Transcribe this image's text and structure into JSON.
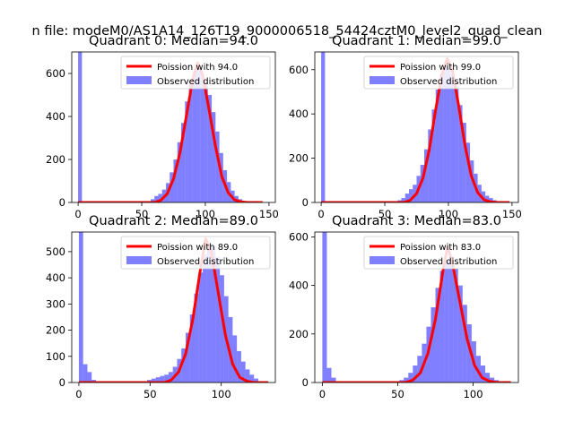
{
  "figure_title": "n file: modeM0/AS1A14_126T19_9000006518_54424cztM0_level2_quad_clean",
  "colors": {
    "hist": "#0000ff",
    "hist_opacity": 0.5,
    "poisson": "#ff0000",
    "axis": "#000000",
    "background": "#ffffff"
  },
  "legend": {
    "poisson_label_prefix": "Poission with ",
    "hist_label": "Observed distribution"
  },
  "chart_data": [
    {
      "type": "bar",
      "title": "Quadrant 0: Median=94.0",
      "median": 94.0,
      "legend_poisson": "Poission with 94.0",
      "legend_position": "upper-right",
      "xlim": [
        -5,
        155
      ],
      "ylim": [
        0,
        700
      ],
      "xticks": [
        0,
        50,
        100,
        150
      ],
      "yticks": [
        0,
        200,
        400,
        600
      ],
      "bin_width": 3,
      "bins": [
        [
          0,
          700
        ],
        [
          3,
          0
        ],
        [
          57,
          15
        ],
        [
          60,
          30
        ],
        [
          63,
          40
        ],
        [
          66,
          60
        ],
        [
          69,
          90
        ],
        [
          72,
          140
        ],
        [
          75,
          200
        ],
        [
          78,
          280
        ],
        [
          81,
          370
        ],
        [
          84,
          470
        ],
        [
          87,
          560
        ],
        [
          90,
          610
        ],
        [
          93,
          620
        ],
        [
          96,
          600
        ],
        [
          99,
          560
        ],
        [
          102,
          500
        ],
        [
          105,
          420
        ],
        [
          108,
          330
        ],
        [
          111,
          230
        ],
        [
          114,
          150
        ],
        [
          117,
          95
        ],
        [
          120,
          55
        ],
        [
          123,
          30
        ],
        [
          126,
          15
        ],
        [
          129,
          5
        ]
      ],
      "curve": [
        [
          0,
          0
        ],
        [
          60,
          0
        ],
        [
          65,
          10
        ],
        [
          70,
          40
        ],
        [
          75,
          110
        ],
        [
          80,
          230
        ],
        [
          85,
          400
        ],
        [
          90,
          570
        ],
        [
          94,
          650
        ],
        [
          98,
          590
        ],
        [
          103,
          430
        ],
        [
          108,
          260
        ],
        [
          113,
          120
        ],
        [
          118,
          45
        ],
        [
          123,
          12
        ],
        [
          128,
          3
        ],
        [
          133,
          0
        ],
        [
          145,
          0
        ]
      ]
    },
    {
      "type": "bar",
      "title": "Quadrant 1: Median=99.0",
      "median": 99.0,
      "legend_poisson": "Poission with 99.0",
      "legend_position": "upper-right",
      "xlim": [
        -5,
        155
      ],
      "ylim": [
        0,
        680
      ],
      "xticks": [
        0,
        50,
        100,
        150
      ],
      "yticks": [
        0,
        200,
        400,
        600
      ],
      "bin_width": 3,
      "bins": [
        [
          0,
          680
        ],
        [
          3,
          0
        ],
        [
          60,
          10
        ],
        [
          63,
          20
        ],
        [
          66,
          40
        ],
        [
          69,
          60
        ],
        [
          72,
          80
        ],
        [
          75,
          120
        ],
        [
          78,
          170
        ],
        [
          81,
          240
        ],
        [
          84,
          330
        ],
        [
          87,
          420
        ],
        [
          90,
          510
        ],
        [
          93,
          580
        ],
        [
          96,
          620
        ],
        [
          99,
          610
        ],
        [
          102,
          580
        ],
        [
          105,
          520
        ],
        [
          108,
          440
        ],
        [
          111,
          360
        ],
        [
          114,
          270
        ],
        [
          117,
          190
        ],
        [
          120,
          130
        ],
        [
          123,
          80
        ],
        [
          126,
          50
        ],
        [
          129,
          30
        ],
        [
          132,
          20
        ],
        [
          135,
          10
        ]
      ],
      "curve": [
        [
          0,
          0
        ],
        [
          65,
          0
        ],
        [
          70,
          10
        ],
        [
          75,
          40
        ],
        [
          80,
          110
        ],
        [
          85,
          240
        ],
        [
          90,
          420
        ],
        [
          95,
          580
        ],
        [
          99,
          650
        ],
        [
          103,
          600
        ],
        [
          108,
          440
        ],
        [
          113,
          260
        ],
        [
          118,
          120
        ],
        [
          123,
          45
        ],
        [
          128,
          12
        ],
        [
          133,
          3
        ],
        [
          138,
          0
        ],
        [
          148,
          0
        ]
      ]
    },
    {
      "type": "bar",
      "title": "Quadrant 2: Median=89.0",
      "median": 89.0,
      "legend_poisson": "Poission with 89.0",
      "legend_position": "upper-right",
      "xlim": [
        -5,
        138
      ],
      "ylim": [
        0,
        575
      ],
      "xticks": [
        0,
        50,
        100
      ],
      "yticks": [
        0,
        100,
        200,
        300,
        400,
        500
      ],
      "bin_width": 3,
      "bins": [
        [
          0,
          575
        ],
        [
          3,
          70
        ],
        [
          6,
          40
        ],
        [
          9,
          10
        ],
        [
          12,
          5
        ],
        [
          48,
          10
        ],
        [
          51,
          15
        ],
        [
          54,
          20
        ],
        [
          57,
          25
        ],
        [
          60,
          30
        ],
        [
          63,
          40
        ],
        [
          66,
          60
        ],
        [
          69,
          90
        ],
        [
          72,
          130
        ],
        [
          75,
          190
        ],
        [
          78,
          260
        ],
        [
          81,
          340
        ],
        [
          84,
          420
        ],
        [
          87,
          490
        ],
        [
          90,
          530
        ],
        [
          93,
          520
        ],
        [
          96,
          480
        ],
        [
          99,
          410
        ],
        [
          102,
          330
        ],
        [
          105,
          250
        ],
        [
          108,
          180
        ],
        [
          111,
          120
        ],
        [
          114,
          80
        ],
        [
          117,
          50
        ],
        [
          120,
          30
        ],
        [
          123,
          15
        ],
        [
          126,
          5
        ]
      ],
      "curve": [
        [
          0,
          0
        ],
        [
          60,
          0
        ],
        [
          65,
          10
        ],
        [
          70,
          40
        ],
        [
          75,
          110
        ],
        [
          80,
          240
        ],
        [
          85,
          420
        ],
        [
          89,
          550
        ],
        [
          93,
          500
        ],
        [
          98,
          340
        ],
        [
          103,
          180
        ],
        [
          108,
          70
        ],
        [
          113,
          20
        ],
        [
          118,
          5
        ],
        [
          123,
          0
        ],
        [
          133,
          0
        ]
      ]
    },
    {
      "type": "bar",
      "title": "Quadrant 3: Median=83.0",
      "median": 83.0,
      "legend_poisson": "Poission with 83.0",
      "legend_position": "upper-right",
      "xlim": [
        -5,
        130
      ],
      "ylim": [
        0,
        620
      ],
      "xticks": [
        0,
        50,
        100
      ],
      "yticks": [
        0,
        200,
        400,
        600
      ],
      "bin_width": 3,
      "bins": [
        [
          0,
          620
        ],
        [
          3,
          60
        ],
        [
          6,
          20
        ],
        [
          9,
          5
        ],
        [
          48,
          5
        ],
        [
          51,
          10
        ],
        [
          54,
          20
        ],
        [
          57,
          40
        ],
        [
          60,
          70
        ],
        [
          63,
          110
        ],
        [
          66,
          160
        ],
        [
          69,
          230
        ],
        [
          72,
          310
        ],
        [
          75,
          390
        ],
        [
          78,
          460
        ],
        [
          81,
          500
        ],
        [
          84,
          510
        ],
        [
          87,
          470
        ],
        [
          90,
          400
        ],
        [
          93,
          320
        ],
        [
          96,
          240
        ],
        [
          99,
          170
        ],
        [
          102,
          110
        ],
        [
          105,
          70
        ],
        [
          108,
          40
        ],
        [
          111,
          20
        ],
        [
          114,
          10
        ]
      ],
      "curve": [
        [
          0,
          0
        ],
        [
          55,
          0
        ],
        [
          60,
          10
        ],
        [
          65,
          40
        ],
        [
          70,
          120
        ],
        [
          75,
          260
        ],
        [
          80,
          460
        ],
        [
          83,
          560
        ],
        [
          86,
          500
        ],
        [
          91,
          340
        ],
        [
          96,
          180
        ],
        [
          101,
          70
        ],
        [
          106,
          20
        ],
        [
          111,
          5
        ],
        [
          116,
          0
        ],
        [
          125,
          0
        ]
      ]
    }
  ]
}
